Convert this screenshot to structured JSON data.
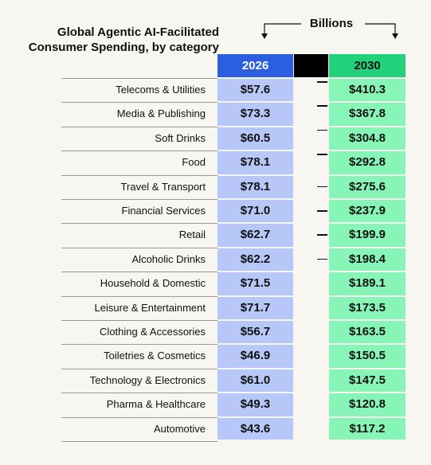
{
  "header": {
    "title_lines": [
      "Global Agentic AI-Facilitated",
      "Consumer Spending, by category"
    ],
    "unit": "Billions"
  },
  "table": {
    "columns": [
      "2026",
      "2030"
    ],
    "rows": [
      [
        "Telecoms & Utilities",
        "$57.6",
        "$410.3"
      ],
      [
        "Media & Publishing",
        "$73.3",
        "$367.8"
      ],
      [
        "Soft Drinks",
        "$60.5",
        "$304.8"
      ],
      [
        "Food",
        "$78.1",
        "$292.8"
      ],
      [
        "Travel & Transport",
        "$78.1",
        "$275.6"
      ],
      [
        "Financial Services",
        "$71.0",
        "$237.9"
      ],
      [
        "Retail",
        "$62.7",
        "$199.9"
      ],
      [
        "Alcoholic Drinks",
        "$62.2",
        "$198.4"
      ],
      [
        "Household & Domestic",
        "$71.5",
        "$189.1"
      ],
      [
        "Leisure & Entertainment",
        "$71.7",
        "$173.5"
      ],
      [
        "Clothing & Accessories",
        "$56.7",
        "$163.5"
      ],
      [
        "Toiletries & Cosmetics",
        "$46.9",
        "$150.5"
      ],
      [
        "Technology & Electronics",
        "$61.0",
        "$147.5"
      ],
      [
        "Pharma & Healthcare",
        "$49.3",
        "$120.8"
      ],
      [
        "Automotive",
        "$43.6",
        "$117.2"
      ]
    ]
  }
}
